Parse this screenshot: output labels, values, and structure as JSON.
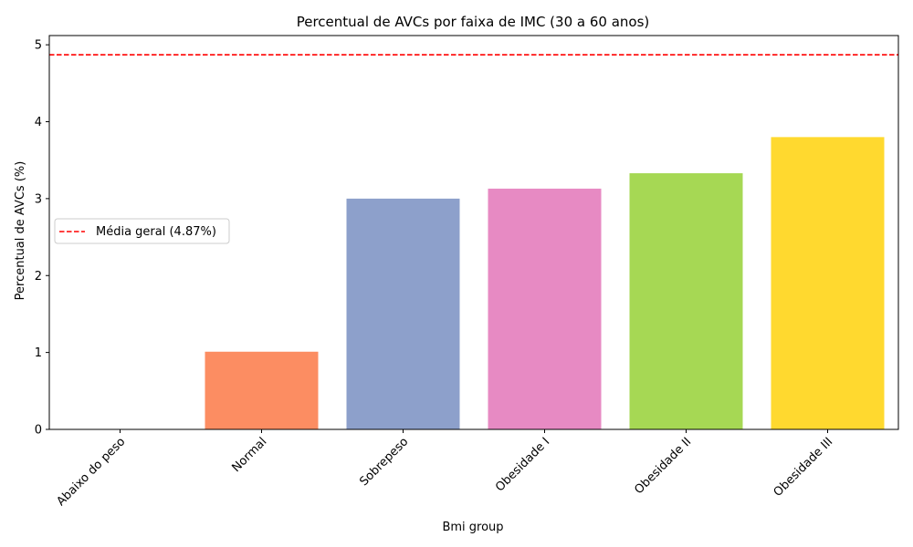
{
  "chart_data": {
    "type": "bar",
    "title": "Percentual de AVCs por faixa de IMC (30 a 60 anos)",
    "xlabel": "Bmi group",
    "ylabel": "Percentual de AVCs (%)",
    "categories": [
      "Abaixo do peso",
      "Normal",
      "Sobrepeso",
      "Obesidade I",
      "Obesidade II",
      "Obesidade III"
    ],
    "values": [
      0.0,
      1.01,
      3.0,
      3.13,
      3.33,
      3.8
    ],
    "colors": [
      "#66c2a5",
      "#fc8d62",
      "#8da0cb",
      "#e78ac3",
      "#a6d854",
      "#ffd92f"
    ],
    "ylim": [
      0,
      5.12
    ],
    "yticks": [
      0,
      1,
      2,
      3,
      4,
      5
    ],
    "grid": false,
    "reference_line": {
      "value": 4.87,
      "color": "#ff0000",
      "style": "dashed",
      "label": "Média geral (4.87%)"
    },
    "legend": {
      "placement": "center-left",
      "entries": [
        "Média geral (4.87%)"
      ]
    }
  }
}
